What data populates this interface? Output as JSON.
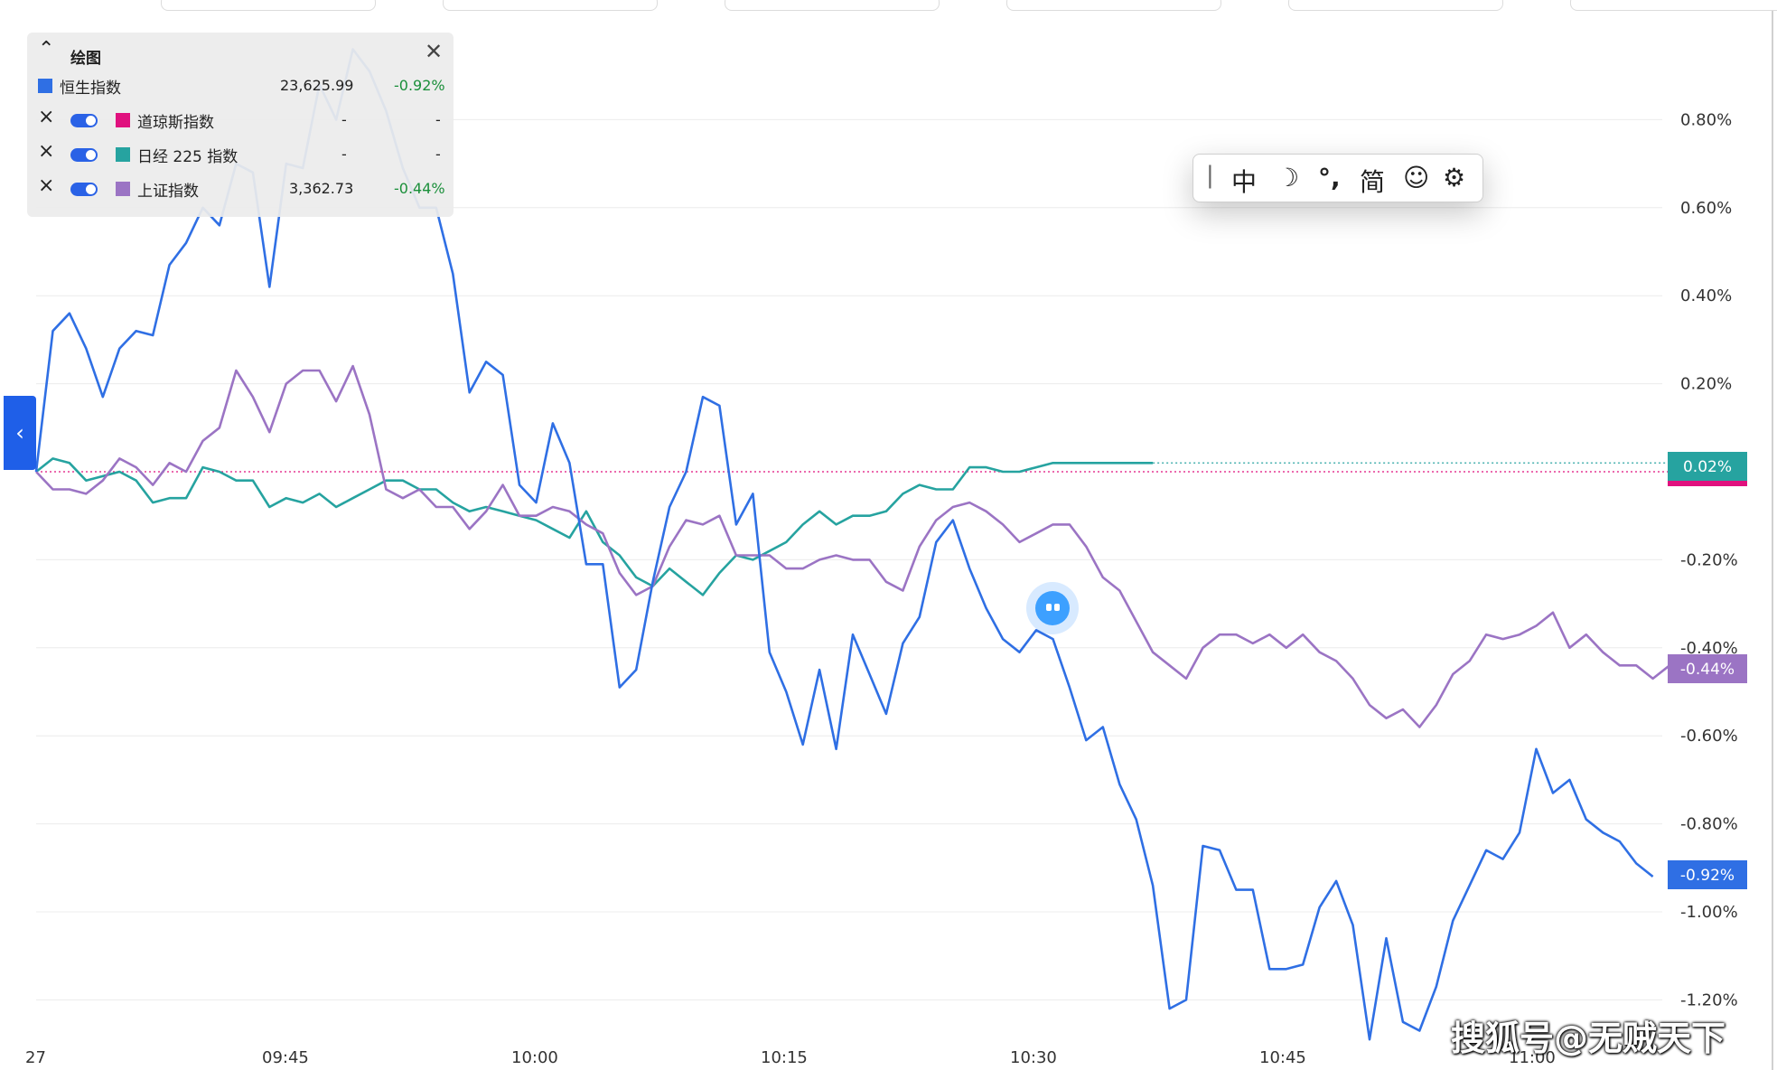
{
  "panel": {
    "title": "绘图",
    "rows": [
      {
        "name": "恒生指数",
        "value": "23,625.99",
        "change": "-0.92%",
        "color": "#2f6fe4"
      },
      {
        "name": "道琼斯指数",
        "value": "-",
        "change": "-",
        "color": "#e0117e"
      },
      {
        "name": "日经 225 指数",
        "value": "-",
        "change": "-",
        "color": "#26a3a0"
      },
      {
        "name": "上证指数",
        "value": "3,362.73",
        "change": "-0.44%",
        "color": "#9b74c4"
      }
    ]
  },
  "ime_toolbar": {
    "mode": "中",
    "moon": "☽",
    "punct": "°,",
    "charset": "简",
    "emoji": "☺",
    "settings": "⚙"
  },
  "watermark": "搜狐号@无贼天下",
  "chart_data": {
    "type": "line",
    "x_ticks": [
      "27",
      "09:45",
      "10:00",
      "10:15",
      "10:30",
      "10:45",
      "11:00"
    ],
    "y_ticks": [
      "0.80%",
      "0.60%",
      "0.40%",
      "0.20%",
      "-0.20%",
      "-0.40%",
      "-0.60%",
      "-0.80%",
      "-1.00%",
      "-1.20%"
    ],
    "ylim": [
      -1.3,
      1.0
    ],
    "grid": true,
    "legend": "top-left",
    "series": [
      {
        "name": "恒生指数",
        "color": "#2f6fe4",
        "last_label": "-0.92%",
        "values": [
          0.0,
          0.32,
          0.36,
          0.28,
          0.17,
          0.28,
          0.32,
          0.31,
          0.47,
          0.52,
          0.6,
          0.56,
          0.7,
          0.68,
          0.42,
          0.7,
          0.69,
          0.88,
          0.8,
          0.96,
          0.91,
          0.82,
          0.69,
          0.6,
          0.6,
          0.45,
          0.18,
          0.25,
          0.22,
          -0.03,
          -0.07,
          0.11,
          0.02,
          -0.21,
          -0.21,
          -0.49,
          -0.45,
          -0.25,
          -0.08,
          0.0,
          0.17,
          0.15,
          -0.12,
          -0.05,
          -0.41,
          -0.5,
          -0.62,
          -0.45,
          -0.63,
          -0.37,
          -0.46,
          -0.55,
          -0.39,
          -0.33,
          -0.16,
          -0.11,
          -0.22,
          -0.31,
          -0.38,
          -0.41,
          -0.36,
          -0.38,
          -0.49,
          -0.61,
          -0.58,
          -0.71,
          -0.79,
          -0.94,
          -1.22,
          -1.2,
          -0.85,
          -0.86,
          -0.95,
          -0.95,
          -1.13,
          -1.13,
          -1.12,
          -0.99,
          -0.93,
          -1.03,
          -1.29,
          -1.06,
          -1.25,
          -1.27,
          -1.17,
          -1.02,
          -0.94,
          -0.86,
          -0.88,
          -0.82,
          -0.63,
          -0.73,
          -0.7,
          -0.79,
          -0.82,
          -0.84,
          -0.89,
          -0.92
        ]
      },
      {
        "name": "道琼斯指数",
        "color": "#e0117e",
        "last_label": "",
        "values": [
          -0.0,
          -0.0,
          -0.0,
          -0.0,
          -0.0,
          -0.0,
          -0.0,
          -0.0,
          -0.0,
          -0.0,
          -0.0,
          -0.0,
          -0.0,
          -0.0,
          -0.0,
          -0.0,
          -0.0,
          -0.0,
          -0.0,
          -0.0,
          -0.0,
          -0.0,
          -0.0,
          -0.0,
          -0.0,
          -0.0,
          -0.0,
          -0.0,
          -0.0,
          -0.0,
          -0.0,
          -0.0,
          -0.0,
          -0.0,
          -0.0,
          -0.0,
          -0.0,
          -0.0,
          -0.0,
          -0.0,
          -0.0,
          -0.0,
          -0.0,
          -0.0,
          -0.0,
          -0.0,
          -0.0,
          -0.0,
          -0.0,
          -0.0,
          -0.0,
          -0.0,
          -0.0,
          -0.0,
          -0.0,
          -0.0,
          -0.0,
          -0.0,
          -0.0,
          -0.0,
          -0.0,
          -0.0,
          -0.0,
          -0.0,
          -0.0,
          -0.0,
          -0.0,
          -0.0,
          -0.0,
          -0.0,
          -0.0,
          -0.0,
          -0.0,
          -0.0,
          -0.0,
          -0.0,
          -0.0,
          -0.0,
          -0.0,
          -0.0,
          -0.0,
          -0.0,
          -0.0,
          -0.0,
          -0.0,
          -0.0,
          -0.0,
          -0.0,
          -0.0,
          -0.0,
          -0.0,
          -0.0,
          -0.0,
          -0.0,
          -0.0,
          -0.0,
          -0.0,
          -0.0
        ]
      },
      {
        "name": "日经 225 指数",
        "color": "#26a3a0",
        "last_label": "0.02%",
        "values": [
          0.0,
          0.03,
          0.02,
          -0.02,
          -0.01,
          0.0,
          -0.02,
          -0.07,
          -0.06,
          -0.06,
          0.01,
          0.0,
          -0.02,
          -0.02,
          -0.08,
          -0.06,
          -0.07,
          -0.05,
          -0.08,
          -0.06,
          -0.04,
          -0.02,
          -0.02,
          -0.04,
          -0.04,
          -0.07,
          -0.09,
          -0.08,
          -0.09,
          -0.1,
          -0.11,
          -0.13,
          -0.15,
          -0.09,
          -0.16,
          -0.19,
          -0.24,
          -0.26,
          -0.22,
          -0.25,
          -0.28,
          -0.23,
          -0.19,
          -0.2,
          -0.18,
          -0.16,
          -0.12,
          -0.09,
          -0.12,
          -0.1,
          -0.1,
          -0.09,
          -0.05,
          -0.03,
          -0.04,
          -0.04,
          0.01,
          0.01,
          0.0,
          0.0,
          0.01,
          0.02,
          0.02,
          0.02,
          0.02,
          0.02,
          0.02,
          0.02
        ]
      },
      {
        "name": "上证指数",
        "color": "#9b74c4",
        "last_label": "-0.44%",
        "values": [
          0.0,
          -0.04,
          -0.04,
          -0.05,
          -0.02,
          0.03,
          0.01,
          -0.03,
          0.02,
          0.0,
          0.07,
          0.1,
          0.23,
          0.17,
          0.09,
          0.2,
          0.23,
          0.23,
          0.16,
          0.24,
          0.13,
          -0.04,
          -0.06,
          -0.04,
          -0.08,
          -0.08,
          -0.13,
          -0.09,
          -0.03,
          -0.1,
          -0.1,
          -0.08,
          -0.09,
          -0.12,
          -0.14,
          -0.23,
          -0.28,
          -0.26,
          -0.17,
          -0.11,
          -0.12,
          -0.1,
          -0.19,
          -0.19,
          -0.19,
          -0.22,
          -0.22,
          -0.2,
          -0.19,
          -0.2,
          -0.2,
          -0.25,
          -0.27,
          -0.17,
          -0.11,
          -0.08,
          -0.07,
          -0.09,
          -0.12,
          -0.16,
          -0.14,
          -0.12,
          -0.12,
          -0.17,
          -0.24,
          -0.27,
          -0.34,
          -0.41,
          -0.44,
          -0.47,
          -0.4,
          -0.37,
          -0.37,
          -0.39,
          -0.37,
          -0.4,
          -0.37,
          -0.41,
          -0.43,
          -0.47,
          -0.53,
          -0.56,
          -0.54,
          -0.58,
          -0.53,
          -0.46,
          -0.43,
          -0.37,
          -0.38,
          -0.37,
          -0.35,
          -0.32,
          -0.4,
          -0.37,
          -0.41,
          -0.44,
          -0.44,
          -0.47,
          -0.44
        ]
      }
    ]
  }
}
